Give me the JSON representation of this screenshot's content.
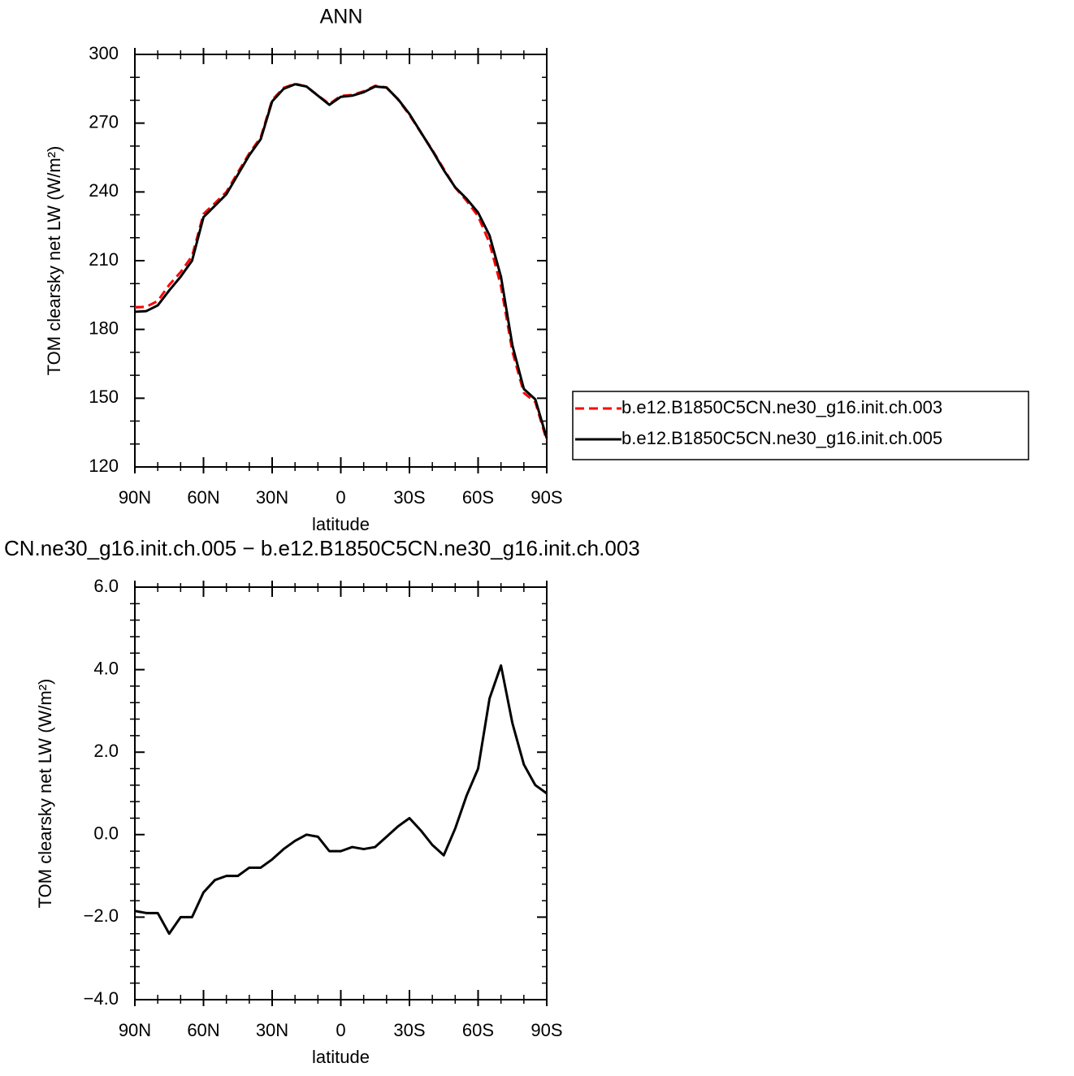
{
  "chart_data": [
    {
      "type": "line",
      "title": "ANN",
      "xlabel": "latitude",
      "ylabel": "TOM clearsky net LW (W/m²)",
      "x": [
        90,
        85,
        80,
        75,
        70,
        65,
        60,
        55,
        50,
        45,
        40,
        35,
        30,
        25,
        20,
        15,
        10,
        5,
        0,
        -5,
        -10,
        -15,
        -20,
        -25,
        -30,
        -35,
        -40,
        -45,
        -50,
        -55,
        -60,
        -65,
        -70,
        -75,
        -80,
        -85,
        -90
      ],
      "series": [
        {
          "name": "b.e12.B1850C5CN.ne30_g16.init.ch.003",
          "color": "#ff0000",
          "dash": true,
          "values": [
            189.6,
            189.9,
            192.4,
            199.4,
            205,
            212,
            230.4,
            235.1,
            240,
            248.5,
            256.8,
            263.8,
            280.1,
            285.4,
            287.2,
            286,
            282.1,
            278.4,
            281.9,
            282.3,
            283.9,
            286.3,
            285.6,
            280.3,
            273.6,
            265.9,
            258.3,
            250,
            241.9,
            236.1,
            229.4,
            217.7,
            198.9,
            170.3,
            152.3,
            148.3,
            131.5
          ]
        },
        {
          "name": "b.e12.B1850C5CN.ne30_g16.init.ch.005",
          "color": "#000000",
          "dash": false,
          "values": [
            187.7,
            188,
            190.5,
            197,
            203,
            210,
            229,
            234,
            239,
            247.5,
            256,
            263,
            279.5,
            285,
            287,
            286,
            282,
            278,
            281.5,
            282,
            283.5,
            286,
            285.5,
            280.5,
            274,
            266,
            258,
            249.5,
            242,
            237,
            231,
            221,
            203,
            173,
            154,
            149.5,
            132.5
          ]
        }
      ],
      "xlim": [
        90,
        -90
      ],
      "xticks": [
        {
          "value": 90,
          "label": "90N"
        },
        {
          "value": 60,
          "label": "60N"
        },
        {
          "value": 30,
          "label": "30N"
        },
        0,
        {
          "value": -30,
          "label": "30S"
        },
        {
          "value": -60,
          "label": "60S"
        },
        {
          "value": -90,
          "label": "90S"
        }
      ],
      "ylim": [
        120,
        300
      ],
      "yticks": [
        120,
        150,
        180,
        210,
        240,
        270,
        300
      ],
      "legend": "right"
    },
    {
      "type": "line",
      "title": "CN.ne30_g16.init.ch.005 − b.e12.B1850C5CN.ne30_g16.init.ch.003",
      "xlabel": "latitude",
      "ylabel": "TOM clearsky net LW (W/m²)",
      "x": [
        90,
        85,
        80,
        75,
        70,
        65,
        60,
        55,
        50,
        45,
        40,
        35,
        30,
        25,
        20,
        15,
        10,
        5,
        0,
        -5,
        -10,
        -15,
        -20,
        -25,
        -30,
        -35,
        -40,
        -45,
        -50,
        -55,
        -60,
        -65,
        -70,
        -75,
        -80,
        -85,
        -90
      ],
      "series": [
        {
          "color": "#000000",
          "dash": false,
          "values": [
            -1.85,
            -1.9,
            -1.9,
            -2.4,
            -2.0,
            -2.0,
            -1.4,
            -1.1,
            -1.0,
            -1.0,
            -0.8,
            -0.8,
            -0.6,
            -0.35,
            -0.15,
            0.0,
            -0.05,
            -0.4,
            -0.4,
            -0.3,
            -0.35,
            -0.3,
            -0.05,
            0.2,
            0.4,
            0.1,
            -0.25,
            -0.5,
            0.15,
            0.95,
            1.6,
            3.3,
            4.1,
            2.7,
            1.7,
            1.2,
            1.0
          ]
        }
      ],
      "xlim": [
        90,
        -90
      ],
      "xticks": [
        {
          "value": 90,
          "label": "90N"
        },
        {
          "value": 60,
          "label": "60N"
        },
        {
          "value": 30,
          "label": "30N"
        },
        0,
        {
          "value": -30,
          "label": "30S"
        },
        {
          "value": -60,
          "label": "60S"
        },
        {
          "value": -90,
          "label": "90S"
        }
      ],
      "ylim": [
        -4,
        6
      ],
      "yticks": [
        {
          "value": -4,
          "label": "−4.0"
        },
        {
          "value": -2,
          "label": "−2.0"
        },
        {
          "value": 0,
          "label": "0.0"
        },
        {
          "value": 2,
          "label": "2.0"
        },
        {
          "value": 4,
          "label": "4.0"
        },
        {
          "value": 6,
          "label": "6.0"
        }
      ]
    }
  ]
}
